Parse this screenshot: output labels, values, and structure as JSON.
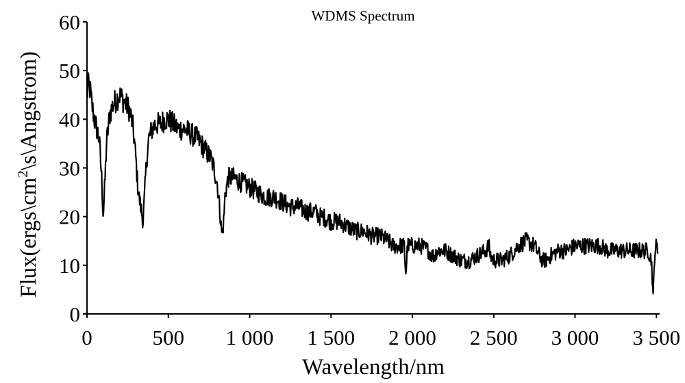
{
  "chart_data": {
    "type": "line",
    "title": "WDMS Spectrum",
    "xlabel": "Wavelength/nm",
    "ylabel_parts": [
      "Flux(ergs\\cm",
      "2",
      "\\s\\Angstrom)"
    ],
    "xlim": [
      0,
      3520
    ],
    "ylim": [
      0,
      60
    ],
    "x_ticks": [
      0,
      500,
      1000,
      1500,
      2000,
      2500,
      3000,
      3500
    ],
    "x_tick_labels": [
      "0",
      "500",
      "1 000",
      "1 500",
      "2 000",
      "2 500",
      "3 000",
      "3 500"
    ],
    "y_ticks": [
      0,
      10,
      20,
      30,
      40,
      50,
      60
    ],
    "y_tick_labels": [
      "0",
      "10",
      "20",
      "30",
      "40",
      "50",
      "60"
    ],
    "grid": false,
    "legend": "none",
    "series": [
      {
        "color": "#000000",
        "noise": 2.2,
        "x": [
          0,
          10,
          20,
          30,
          45,
          60,
          75,
          90,
          95,
          100,
          110,
          120,
          140,
          160,
          180,
          200,
          220,
          240,
          260,
          280,
          290,
          300,
          310,
          320,
          330,
          340,
          345,
          350,
          360,
          370,
          380,
          400,
          420,
          450,
          480,
          500,
          530,
          560,
          600,
          640,
          680,
          700,
          720,
          740,
          760,
          780,
          800,
          815,
          830,
          840,
          850,
          870,
          900,
          950,
          1000,
          1050,
          1100,
          1150,
          1200,
          1250,
          1300,
          1350,
          1400,
          1430,
          1440,
          1450,
          1500,
          1550,
          1600,
          1650,
          1700,
          1750,
          1800,
          1850,
          1880,
          1900,
          1950,
          1960,
          1970,
          2000,
          2050,
          2100,
          2120,
          2140,
          2150,
          2200,
          2250,
          2300,
          2350,
          2400,
          2450,
          2470,
          2480,
          2500,
          2550,
          2600,
          2650,
          2700,
          2750,
          2780,
          2800,
          2820,
          2850,
          2900,
          2950,
          3000,
          3050,
          3100,
          3150,
          3200,
          3250,
          3300,
          3350,
          3400,
          3450,
          3470,
          3480,
          3490,
          3500,
          3510
        ],
        "y": [
          45,
          47,
          46,
          43,
          40,
          38,
          36,
          28,
          24,
          20,
          27,
          35,
          41,
          43,
          44,
          45,
          44,
          43,
          42,
          39,
          36,
          32,
          27,
          24,
          22,
          20,
          19,
          22,
          28,
          33,
          36,
          38,
          39,
          39,
          40,
          40,
          39,
          38,
          38,
          37,
          36,
          35,
          34,
          33,
          32,
          30,
          27,
          22,
          16,
          19,
          25,
          28,
          28,
          27,
          26,
          25,
          24,
          24,
          23,
          22,
          22,
          21,
          21,
          20,
          20,
          20,
          19,
          19,
          18,
          17,
          17,
          16,
          16,
          15,
          14,
          14,
          14,
          8,
          14,
          14,
          14,
          13,
          12,
          12,
          13,
          13,
          12,
          11,
          11,
          12,
          13,
          14,
          12,
          11,
          11,
          12,
          14,
          15,
          14,
          12,
          11,
          11,
          12,
          13,
          13,
          14,
          14,
          14,
          14,
          13,
          13,
          13,
          13,
          13,
          13,
          11,
          3,
          13,
          14,
          13
        ]
      }
    ]
  }
}
